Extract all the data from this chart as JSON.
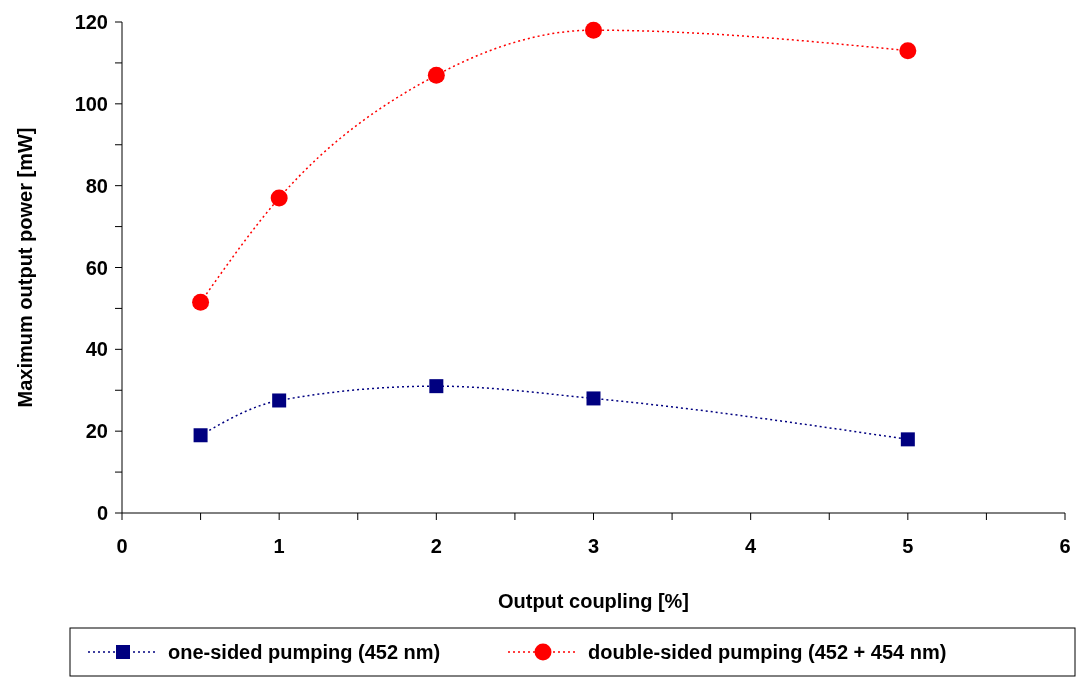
{
  "chart_data": {
    "type": "line",
    "xlabel": "Output coupling [%]",
    "ylabel": "Maximum output power [mW]",
    "xlim": [
      0,
      6
    ],
    "ylim": [
      0,
      120
    ],
    "xticks": [
      0,
      {
        "value": 0.5,
        "label": null
      },
      1,
      {
        "value": 1.5,
        "label": null
      },
      2,
      {
        "value": 2.5,
        "label": null
      },
      3,
      {
        "value": 3.5,
        "label": null
      },
      4,
      {
        "value": 4.5,
        "label": null
      },
      5,
      {
        "value": 5.5,
        "label": null
      },
      6
    ],
    "yticks": [
      0,
      {
        "value": 10,
        "label": null
      },
      20,
      {
        "value": 30,
        "label": null
      },
      40,
      {
        "value": 50,
        "label": null
      },
      60,
      {
        "value": 70,
        "label": null
      },
      80,
      {
        "value": 90,
        "label": null
      },
      100,
      {
        "value": 110,
        "label": null
      },
      120
    ],
    "grid": false,
    "legend": "bottom",
    "line_style": "dotted",
    "series": [
      {
        "name": "one-sided pumping (452 nm)",
        "color": "#000080",
        "marker": "square",
        "x": [
          0.5,
          1,
          2,
          3,
          5
        ],
        "values": [
          19,
          27.5,
          31,
          28,
          18
        ]
      },
      {
        "name": "double-sided pumping (452 + 454 nm)",
        "color": "#ff0000",
        "marker": "circle",
        "x": [
          0.5,
          1,
          2,
          3,
          5
        ],
        "values": [
          51.5,
          77,
          107,
          118,
          113
        ]
      }
    ]
  }
}
